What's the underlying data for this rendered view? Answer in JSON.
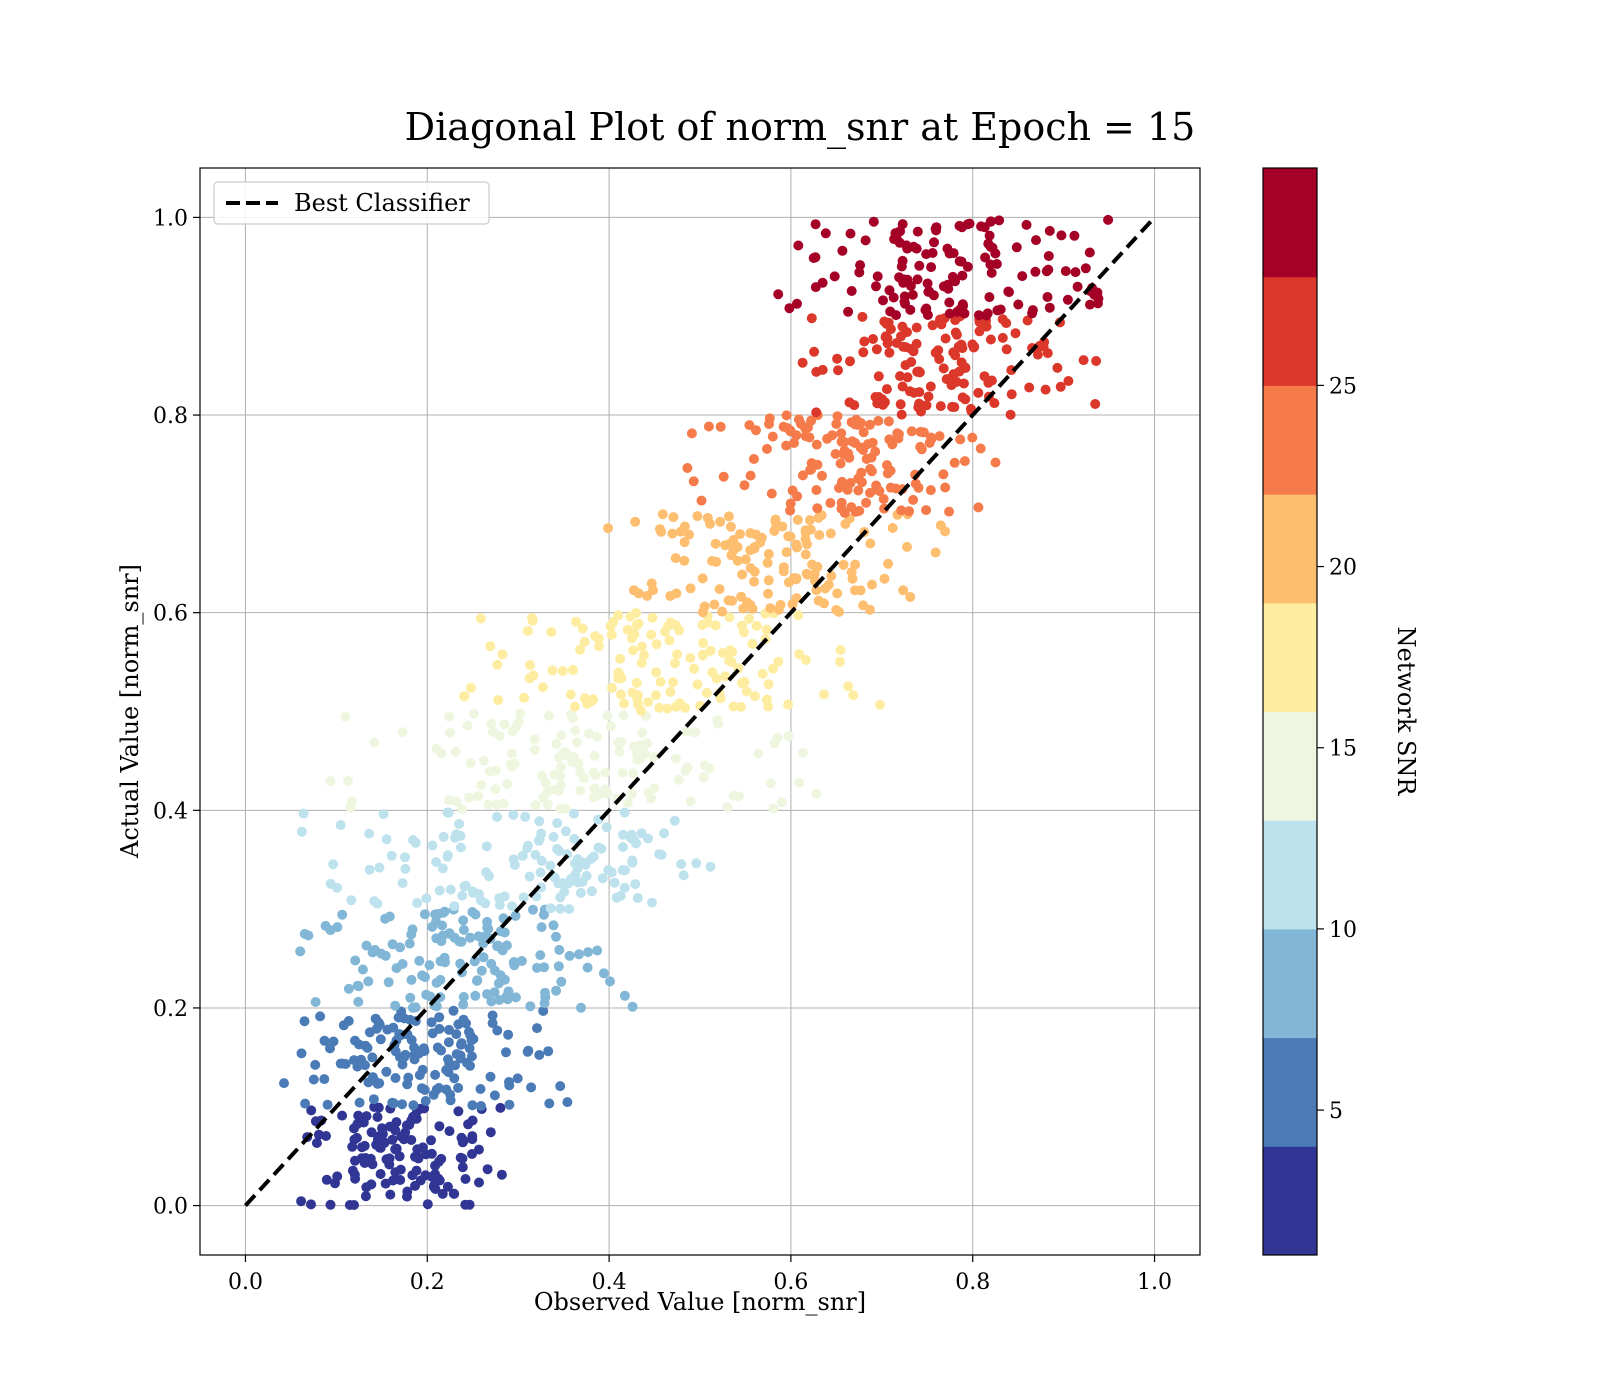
{
  "chart_data": {
    "type": "scatter",
    "title": "Diagonal Plot of norm_snr at Epoch = 15",
    "xlabel": "Observed Value [norm_snr]",
    "ylabel": "Actual Value [norm_snr]",
    "xlim": [
      -0.05,
      1.05
    ],
    "ylim": [
      -0.05,
      1.05
    ],
    "xticks": [
      "0.0",
      "0.2",
      "0.4",
      "0.6",
      "0.8",
      "1.0"
    ],
    "yticks": [
      "0.0",
      "0.2",
      "0.4",
      "0.6",
      "0.8",
      "1.0"
    ],
    "grid": true,
    "legend": {
      "position": "top-left",
      "entries": [
        "Best Classifier"
      ]
    },
    "reference_line": {
      "name": "Best Classifier",
      "style": "dashed",
      "color": "#000000",
      "x": [
        0,
        1
      ],
      "y": [
        0,
        1
      ]
    },
    "colorbar": {
      "label": "Network SNR",
      "range": [
        1,
        31
      ],
      "ticks": [
        "5",
        "10",
        "15",
        "20",
        "25"
      ],
      "tick_values": [
        5,
        10,
        15,
        20,
        25
      ],
      "colors": [
        "#313695",
        "#4a7bb7",
        "#81b6d6",
        "#bde2ed",
        "#eef6e0",
        "#feeda1",
        "#fdbe70",
        "#f57b4b",
        "#db382b",
        "#a50026"
      ]
    },
    "bands": [
      {
        "actual_range": [
          0.0,
          0.1
        ],
        "observed_range": [
          0.04,
          0.3
        ],
        "color": "#313695"
      },
      {
        "actual_range": [
          0.1,
          0.2
        ],
        "observed_range": [
          0.04,
          0.36
        ],
        "color": "#4a7bb7"
      },
      {
        "actual_range": [
          0.2,
          0.3
        ],
        "observed_range": [
          0.05,
          0.43
        ],
        "color": "#81b6d6"
      },
      {
        "actual_range": [
          0.3,
          0.4
        ],
        "observed_range": [
          0.06,
          0.54
        ],
        "color": "#bde2ed"
      },
      {
        "actual_range": [
          0.4,
          0.5
        ],
        "observed_range": [
          0.09,
          0.63
        ],
        "color": "#eef6e0"
      },
      {
        "actual_range": [
          0.5,
          0.6
        ],
        "observed_range": [
          0.22,
          0.7
        ],
        "color": "#feeda1"
      },
      {
        "actual_range": [
          0.6,
          0.7
        ],
        "observed_range": [
          0.39,
          0.79
        ],
        "color": "#fdbe70"
      },
      {
        "actual_range": [
          0.7,
          0.8
        ],
        "observed_range": [
          0.48,
          0.86
        ],
        "color": "#f57b4b"
      },
      {
        "actual_range": [
          0.8,
          0.9
        ],
        "observed_range": [
          0.61,
          0.94
        ],
        "color": "#db382b"
      },
      {
        "actual_range": [
          0.9,
          1.0
        ],
        "observed_range": [
          0.58,
          0.98
        ],
        "color": "#a50026"
      }
    ]
  }
}
